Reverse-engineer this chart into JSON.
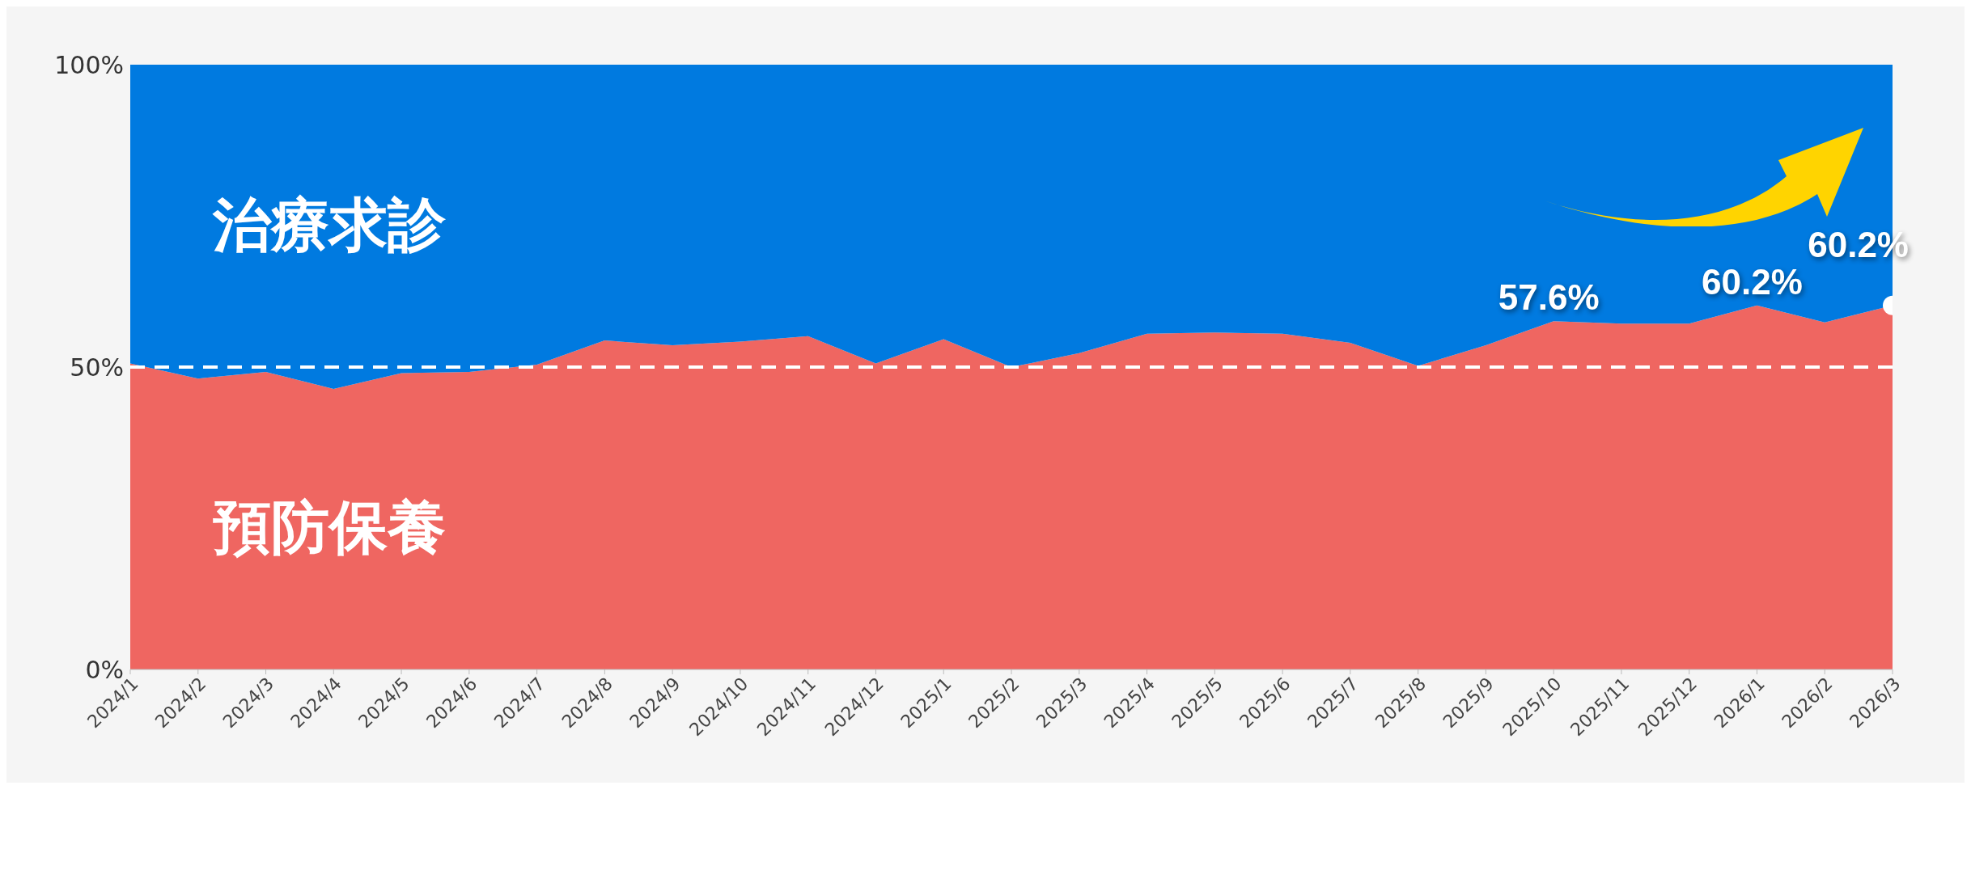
{
  "chart_data": {
    "type": "area",
    "stacked": true,
    "categories": [
      "2024/1",
      "2024/2",
      "2024/3",
      "2024/4",
      "2024/5",
      "2024/6",
      "2024/7",
      "2024/8",
      "2024/9",
      "2024/10",
      "2024/11",
      "2024/12",
      "2025/1",
      "2025/2",
      "2025/3",
      "2025/4",
      "2025/5",
      "2025/6",
      "2025/7",
      "2025/8",
      "2025/9",
      "2025/10",
      "2025/11",
      "2025/12",
      "2026/1",
      "2026/2",
      "2026/3"
    ],
    "series": [
      {
        "name": "預防保養",
        "color": "#ef6661",
        "values": [
          50.6,
          48.1,
          49.2,
          46.4,
          49,
          49.2,
          50.4,
          54.4,
          53.6,
          54.2,
          55.1,
          50.6,
          54.6,
          50,
          52.3,
          55.5,
          55.7,
          55.5,
          54,
          50.2,
          53.6,
          57.6,
          57.2,
          57.2,
          60.2,
          57.4,
          60.2
        ],
        "value_labels": [
          null,
          null,
          null,
          null,
          null,
          null,
          null,
          null,
          null,
          null,
          null,
          null,
          null,
          null,
          null,
          null,
          null,
          null,
          null,
          null,
          null,
          "57.6%",
          null,
          null,
          "60.2%",
          null,
          "60.2%"
        ]
      },
      {
        "name": "治療求診",
        "color": "#007ae0",
        "values": [
          49.4,
          51.9,
          50.8,
          53.6,
          51,
          50.8,
          49.6,
          45.6,
          46.4,
          45.8,
          44.9,
          49.4,
          45.4,
          50,
          47.7,
          44.5,
          44.3,
          44.5,
          46,
          49.8,
          46.4,
          42.4,
          42.8,
          42.8,
          39.8,
          42.6,
          39.8
        ]
      },
      {
        "type": "scatter",
        "color": "#ffffff",
        "x": [
          "2026/3"
        ],
        "values": [
          60.2
        ]
      }
    ],
    "ylim": [
      0,
      100
    ],
    "yticks": [
      {
        "value": 0,
        "label": "0%"
      },
      {
        "value": 50,
        "label": "50%"
      },
      {
        "value": 100,
        "label": "100%"
      }
    ],
    "ref_lines": [
      {
        "axis": "y",
        "value": 50,
        "color": "#ffffff",
        "line_style": "dashed"
      }
    ],
    "grid": false,
    "legend": false
  }
}
